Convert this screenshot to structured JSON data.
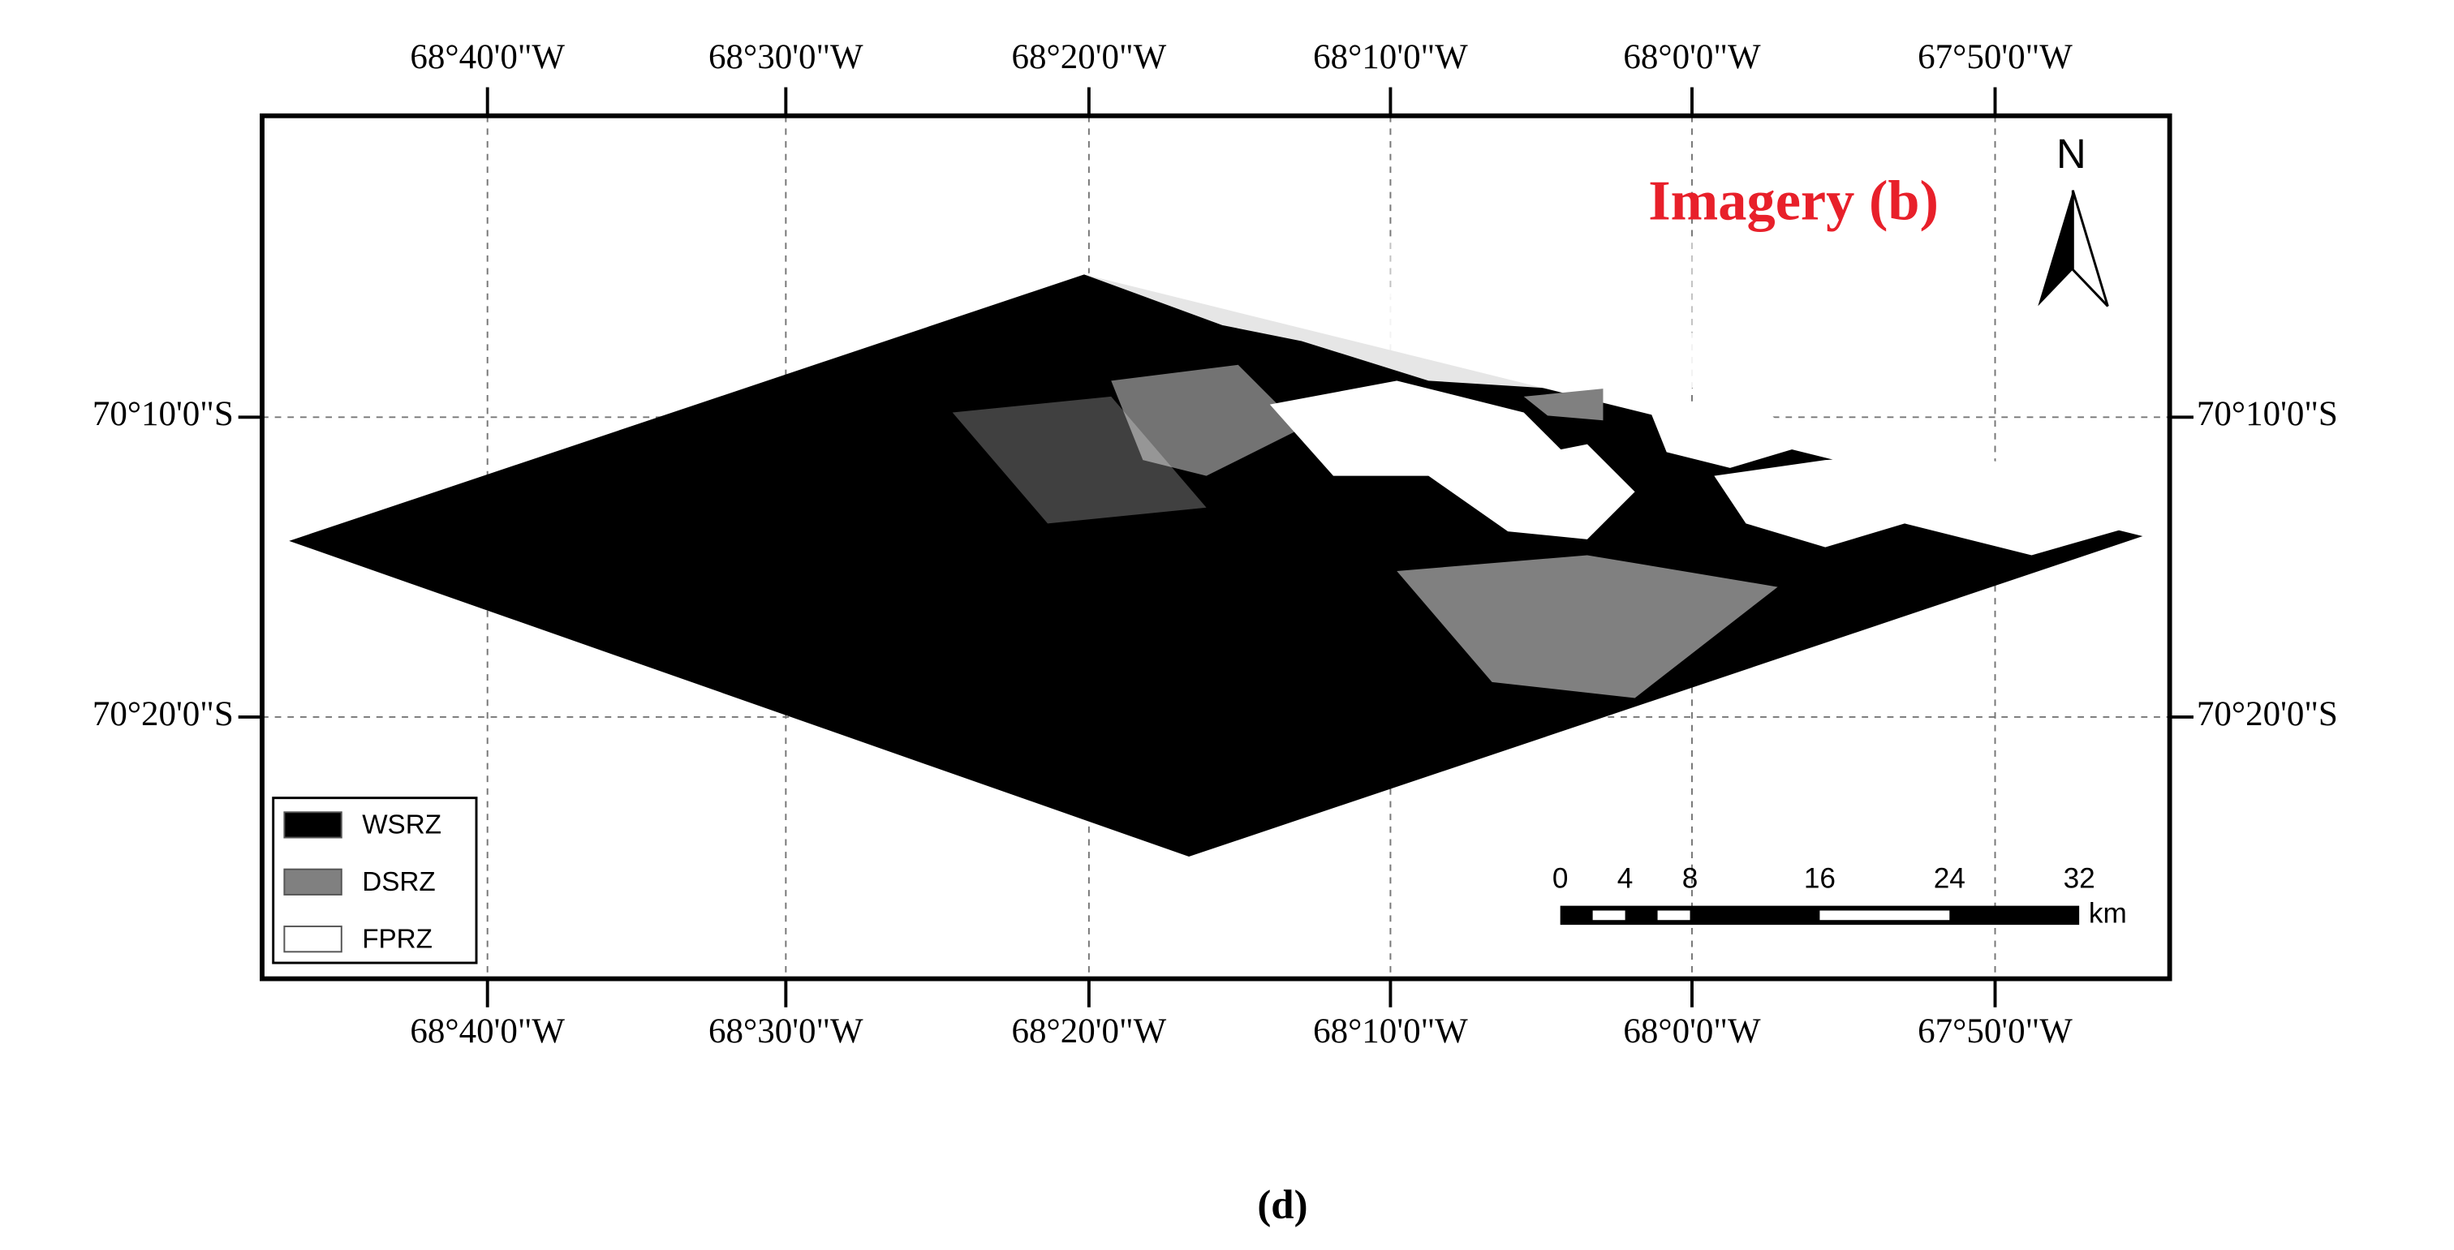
{
  "map": {
    "title": "Imagery (b)",
    "north_label": "N",
    "longitude_labels": [
      "68°40'0\"W",
      "68°30'0\"W",
      "68°20'0\"W",
      "68°10'0\"W",
      "68°0'0\"W",
      "67°50'0\"W"
    ],
    "latitude_labels": [
      "70°10'0\"S",
      "70°20'0\"S"
    ],
    "legend": [
      {
        "label": "WSRZ",
        "color": "#000000"
      },
      {
        "label": "DSRZ",
        "color": "#808080"
      },
      {
        "label": "FPRZ",
        "color": "#ffffff"
      }
    ],
    "scale_bar": {
      "ticks": [
        0,
        4,
        8,
        16,
        24,
        32
      ],
      "unit": "km"
    },
    "caption": "(d)"
  }
}
